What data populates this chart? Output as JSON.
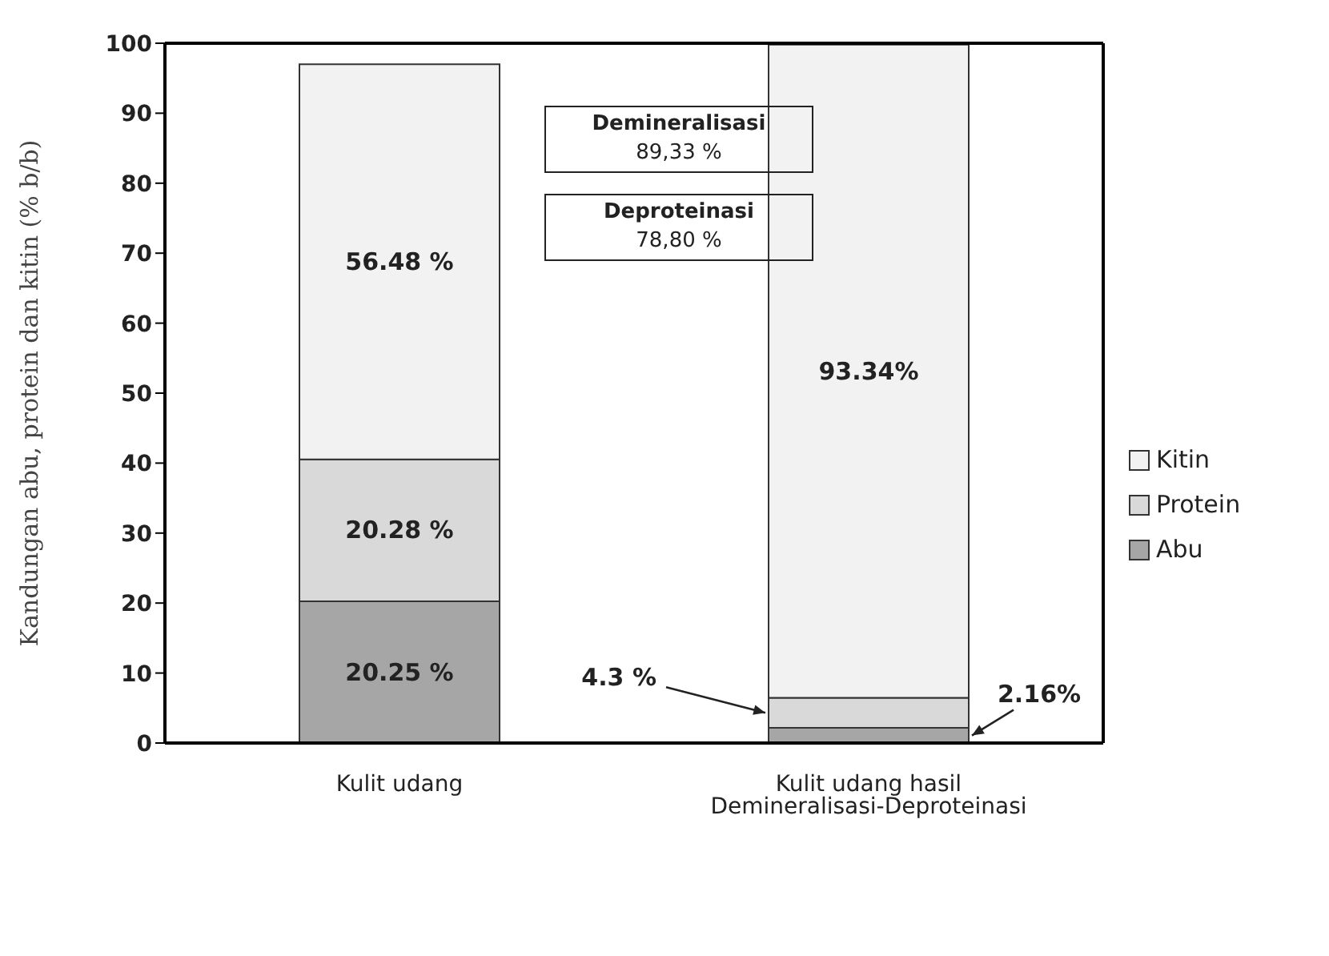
{
  "chart_data": {
    "type": "bar",
    "stacked": true,
    "ylabel": "Kandungan abu, protein dan kitin (% b/b)",
    "categories": [
      "Kulit udang",
      "Kulit udang hasil Demineralisasi-Deproteinasi"
    ],
    "series": [
      {
        "name": "Abu",
        "color": "#a6a6a6",
        "values": [
          20.25,
          2.16
        ],
        "value_labels": [
          "20.25 %",
          "2.16%"
        ]
      },
      {
        "name": "Protein",
        "color": "#d9d9d9",
        "values": [
          20.28,
          4.3
        ],
        "value_labels": [
          "20.28 %",
          "4.3 %"
        ]
      },
      {
        "name": "Kitin",
        "color": "#f2f2f2",
        "values": [
          56.48,
          93.34
        ],
        "value_labels": [
          "56.48 %",
          "93.34%"
        ]
      }
    ],
    "ylim": [
      0,
      100
    ],
    "yticks": [
      0,
      10,
      20,
      30,
      40,
      50,
      60,
      70,
      80,
      90,
      100
    ],
    "grid": false,
    "legend": "right",
    "annotations": [
      "Demineralisasi\n89,33 %",
      "Deproteinasi\n78,80 %"
    ]
  }
}
